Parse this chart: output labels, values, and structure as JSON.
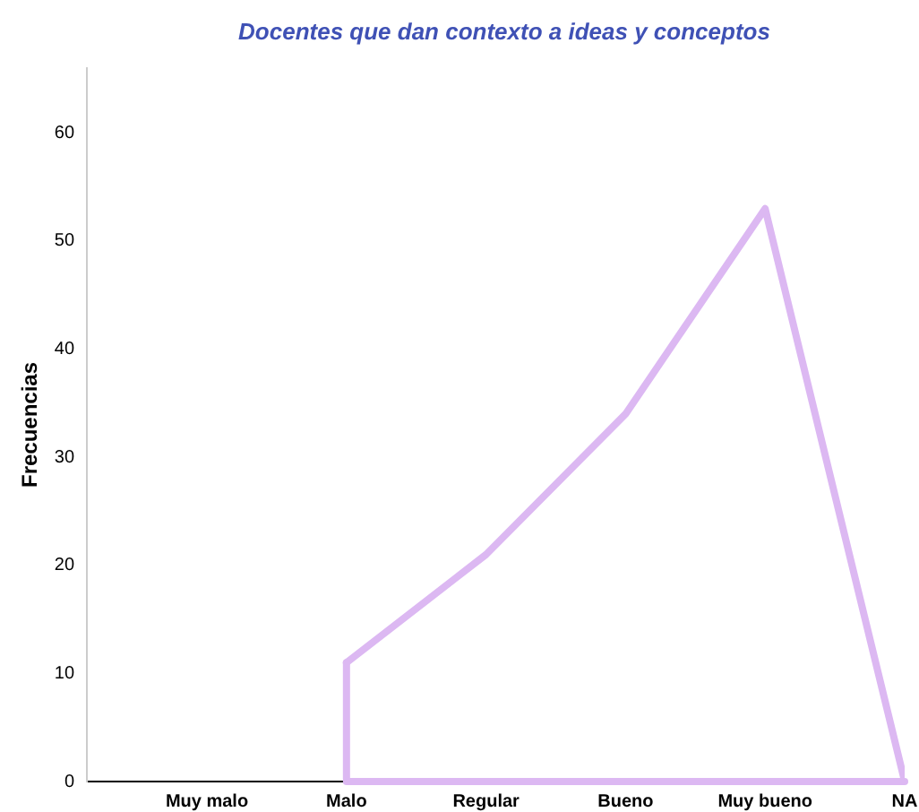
{
  "chart_data": {
    "type": "line",
    "title": "Docentes que dan contexto a ideas y conceptos",
    "ylabel": "Frecuencias",
    "categories": [
      "Muy malo",
      "Malo",
      "Regular",
      "Bueno",
      "Muy bueno",
      "NA"
    ],
    "series": [
      {
        "color": "#dcb8f2",
        "values": [
          null,
          11,
          21,
          34,
          53,
          0
        ]
      }
    ],
    "ylim": [
      0,
      66
    ],
    "yticks": [
      0,
      10,
      20,
      30,
      40,
      50,
      60
    ],
    "grid": false,
    "legend": false,
    "marker": "none",
    "line_style": "solid"
  }
}
